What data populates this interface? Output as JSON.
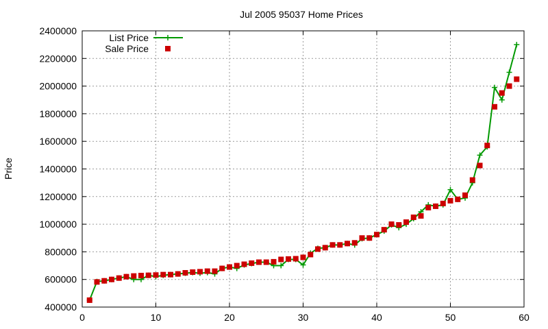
{
  "chart_data": {
    "type": "line",
    "title": "Jul 2005 95037 Home Prices",
    "xlabel": "",
    "ylabel": "Price",
    "xlim": [
      0,
      60
    ],
    "ylim": [
      400000,
      2400000
    ],
    "xticks": [
      "0",
      "10",
      "20",
      "30",
      "40",
      "50",
      "60"
    ],
    "yticks": [
      "400000",
      "600000",
      "800000",
      "1000000",
      "1200000",
      "1400000",
      "1600000",
      "1800000",
      "2000000",
      "2200000",
      "2400000"
    ],
    "grid": true,
    "legend_position": "top-left",
    "x": [
      1,
      2,
      3,
      4,
      5,
      6,
      7,
      8,
      9,
      10,
      11,
      12,
      13,
      14,
      15,
      16,
      17,
      18,
      19,
      20,
      21,
      22,
      23,
      24,
      25,
      26,
      27,
      28,
      29,
      30,
      31,
      32,
      33,
      34,
      35,
      36,
      37,
      38,
      39,
      40,
      41,
      42,
      43,
      44,
      45,
      46,
      47,
      48,
      49,
      50,
      51,
      52,
      53,
      54,
      55,
      56,
      57,
      58,
      59
    ],
    "series": [
      {
        "name": "List Price",
        "style": "line-plus",
        "color": "#009900",
        "values": [
          450000,
          585000,
          590000,
          600000,
          610000,
          620000,
          600000,
          600000,
          630000,
          620000,
          630000,
          635000,
          640000,
          645000,
          650000,
          645000,
          650000,
          640000,
          680000,
          690000,
          680000,
          705000,
          715000,
          725000,
          725000,
          700000,
          700000,
          745000,
          745000,
          705000,
          790000,
          825000,
          830000,
          850000,
          850000,
          860000,
          850000,
          895000,
          900000,
          925000,
          950000,
          995000,
          975000,
          1000000,
          1040000,
          1090000,
          1140000,
          1130000,
          1140000,
          1250000,
          1180000,
          1190000,
          1300000,
          1500000,
          1560000,
          1990000,
          1900000,
          2100000,
          2300000
        ]
      },
      {
        "name": "Sale Price",
        "style": "points-square",
        "color": "#cc0000",
        "values": [
          450000,
          582000,
          590000,
          600000,
          610000,
          620000,
          625000,
          628000,
          630000,
          632000,
          635000,
          635000,
          640000,
          648000,
          653000,
          656000,
          660000,
          660000,
          680000,
          690000,
          700000,
          710000,
          718000,
          725000,
          725000,
          728000,
          745000,
          748000,
          750000,
          760000,
          780000,
          820000,
          830000,
          850000,
          850000,
          860000,
          865000,
          900000,
          900000,
          925000,
          960000,
          1000000,
          995000,
          1015000,
          1050000,
          1060000,
          1120000,
          1130000,
          1150000,
          1170000,
          1180000,
          1210000,
          1320000,
          1425000,
          1570000,
          1850000,
          1950000,
          2000000,
          2050000
        ]
      }
    ]
  }
}
